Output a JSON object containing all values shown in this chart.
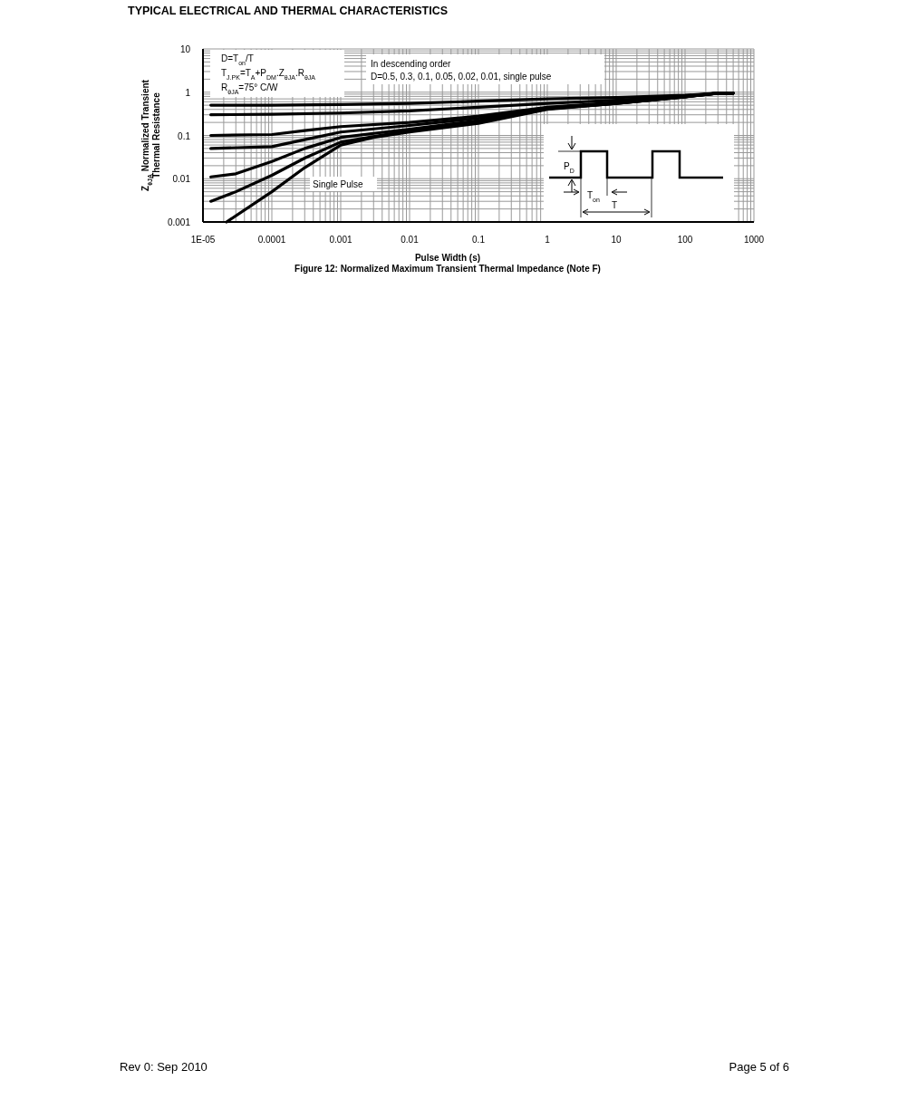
{
  "chart_data": {
    "type": "line",
    "title": "TYPICAL ELECTRICAL AND THERMAL CHARACTERISTICS",
    "xlabel": "Pulse Width (s)",
    "ylabel": "Z$_{θJA}$ Normalized Transient Thermal Resistance",
    "log": "xy",
    "grid": true,
    "marker": "none",
    "line_style": "solid",
    "xlim": [
      1e-05,
      1000
    ],
    "ylim": [
      0.001,
      10
    ],
    "xticks": [
      {
        "value": 1e-05,
        "label": "1E-05"
      },
      0.0001,
      0.001,
      0.01,
      0.1,
      1,
      10,
      100,
      1000
    ],
    "yticks": [
      0.001,
      0.01,
      0.1,
      1,
      10
    ],
    "series": [
      {
        "color": "#000000",
        "x": [
          1.3e-05,
          0.0001,
          0.001,
          0.01,
          0.1,
          1,
          10,
          100,
          300,
          500
        ],
        "values": [
          0.5,
          0.5,
          0.52,
          0.55,
          0.62,
          0.7,
          0.75,
          0.85,
          0.95,
          0.95
        ]
      },
      {
        "color": "#000000",
        "x": [
          1.3e-05,
          0.0001,
          0.001,
          0.01,
          0.1,
          1,
          10,
          100,
          300,
          500
        ],
        "values": [
          0.3,
          0.31,
          0.33,
          0.37,
          0.45,
          0.55,
          0.65,
          0.82,
          0.95,
          0.95
        ]
      },
      {
        "color": "#000000",
        "x": [
          1.3e-05,
          0.0001,
          0.0003,
          0.001,
          0.01,
          0.1,
          1,
          10,
          100,
          300,
          500
        ],
        "values": [
          0.1,
          0.105,
          0.13,
          0.16,
          0.2,
          0.28,
          0.45,
          0.58,
          0.8,
          0.95,
          0.95
        ]
      },
      {
        "color": "#000000",
        "x": [
          1.3e-05,
          0.0001,
          0.0003,
          0.001,
          0.01,
          0.1,
          1,
          10,
          100,
          300,
          500
        ],
        "values": [
          0.05,
          0.055,
          0.08,
          0.12,
          0.17,
          0.25,
          0.43,
          0.56,
          0.79,
          0.95,
          0.95
        ]
      },
      {
        "color": "#000000",
        "x": [
          1.3e-05,
          3e-05,
          0.0001,
          0.0003,
          0.001,
          0.01,
          0.1,
          1,
          10,
          100,
          300,
          500
        ],
        "values": [
          0.011,
          0.013,
          0.025,
          0.05,
          0.09,
          0.14,
          0.22,
          0.42,
          0.55,
          0.78,
          0.95,
          0.95
        ]
      },
      {
        "color": "#000000",
        "x": [
          1.3e-05,
          3e-05,
          0.0001,
          0.0003,
          0.001,
          0.01,
          0.1,
          1,
          10,
          100,
          300,
          500
        ],
        "values": [
          0.003,
          0.005,
          0.012,
          0.03,
          0.07,
          0.13,
          0.2,
          0.41,
          0.55,
          0.78,
          0.95,
          0.95
        ]
      },
      {
        "color": "#000000",
        "x": [
          2.2e-05,
          0.0001,
          0.0003,
          0.001,
          0.003,
          0.01,
          0.1,
          1,
          10,
          100,
          300,
          500
        ],
        "values": [
          0.001,
          0.005,
          0.018,
          0.06,
          0.09,
          0.12,
          0.19,
          0.4,
          0.55,
          0.78,
          0.95,
          0.95
        ]
      }
    ],
    "annotations": [
      "D=T$_{on}$/T",
      "T$_{J.PK}$=T$_{A}$+P$_{DM}$.Z$_{θJA}$.R$_{θJA}$",
      "R$_{θJA}$=75° C/W",
      "In descending order",
      "D=0.5, 0.3, 0.1, 0.05, 0.02, 0.01, single pulse",
      "Single Pulse",
      "P$_{D}$",
      "T$_{on}$",
      "T",
      "Figure 12: Normalized Maximum Transient Thermal Impedance (Note F)",
      "Rev 0: Sep 2010",
      "Page 5 of 6"
    ]
  }
}
